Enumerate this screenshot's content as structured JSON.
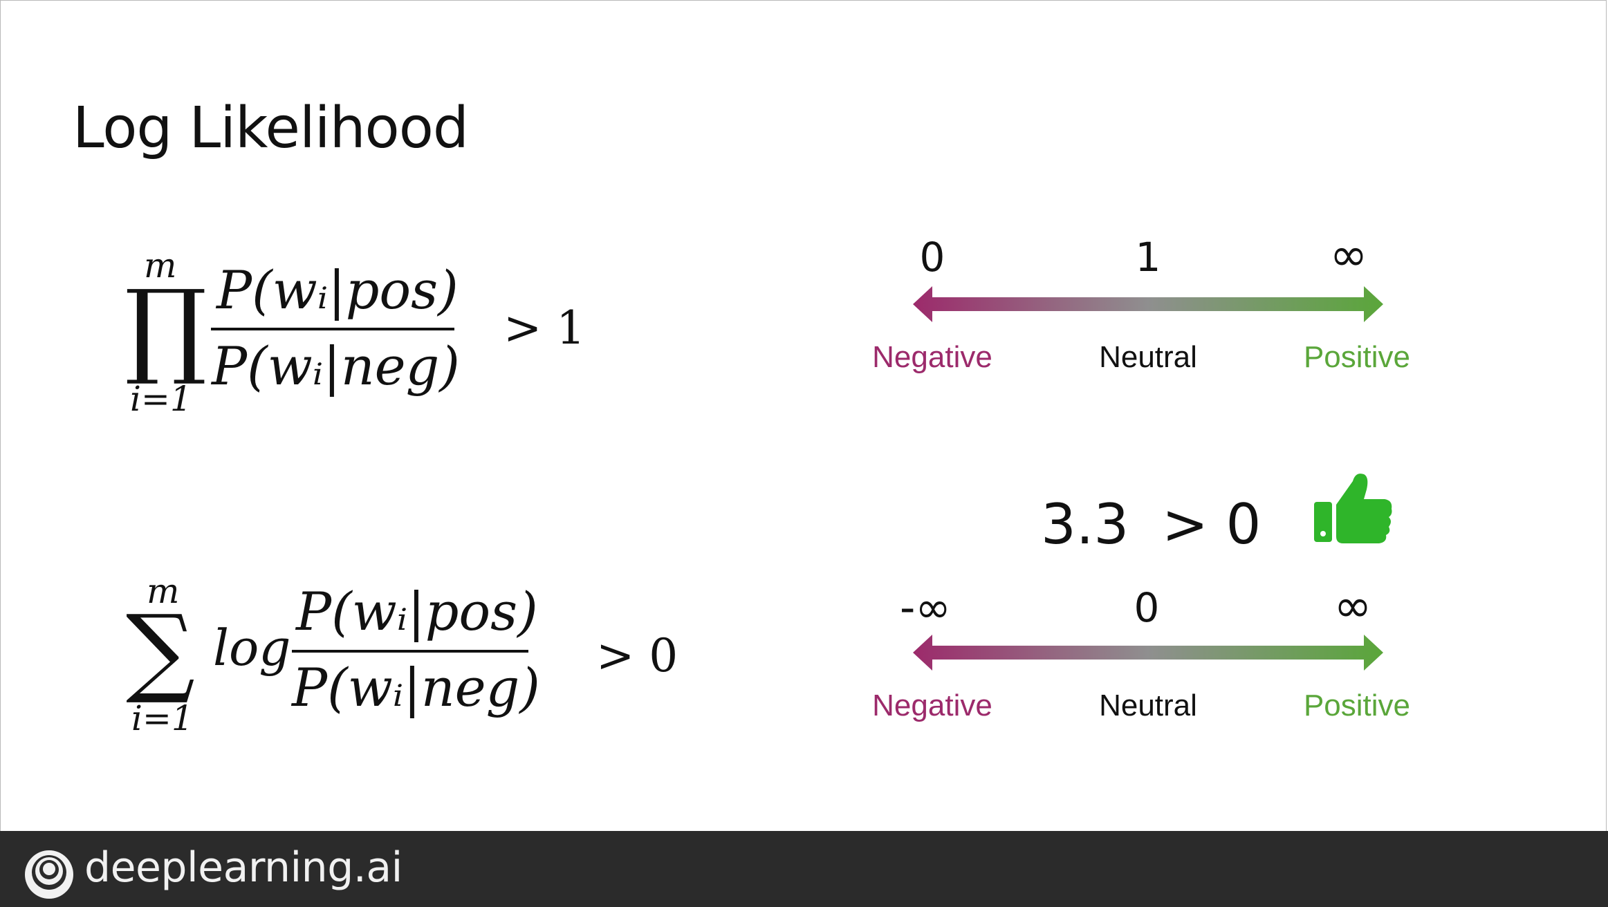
{
  "slide": {
    "title": "Log Likelihood"
  },
  "formula_product": {
    "upper_limit": "m",
    "lower_limit": "i=1",
    "numerator": "P(wᵢ|pos)",
    "denominator": "P(wᵢ|neg)",
    "relation": "> 1"
  },
  "formula_sum": {
    "upper_limit": "m",
    "lower_limit": "i=1",
    "log": "log",
    "numerator": "P(wᵢ|pos)",
    "denominator": "P(wᵢ|neg)",
    "relation": "> 0"
  },
  "scale_ratio": {
    "left_value": "0",
    "mid_value": "1",
    "right_value": "∞",
    "negative_label": "Negative",
    "neutral_label": "Neutral",
    "positive_label": "Positive"
  },
  "scale_log": {
    "left_value": "-∞",
    "mid_value": "0",
    "right_value": "∞",
    "negative_label": "Negative",
    "neutral_label": "Neutral",
    "positive_label": "Positive"
  },
  "example": {
    "score": "3.3",
    "comparison": "> 0",
    "icon": "thumbs-up-icon"
  },
  "footer": {
    "brand": "deeplearning.ai",
    "icon": "deeplearning-logo-icon"
  },
  "colors": {
    "negative": "#9c2a6b",
    "neutral": "#8a8a8a",
    "positive": "#5aa63a",
    "thumb": "#2fb52a",
    "footer_bg": "#2b2b2b"
  }
}
